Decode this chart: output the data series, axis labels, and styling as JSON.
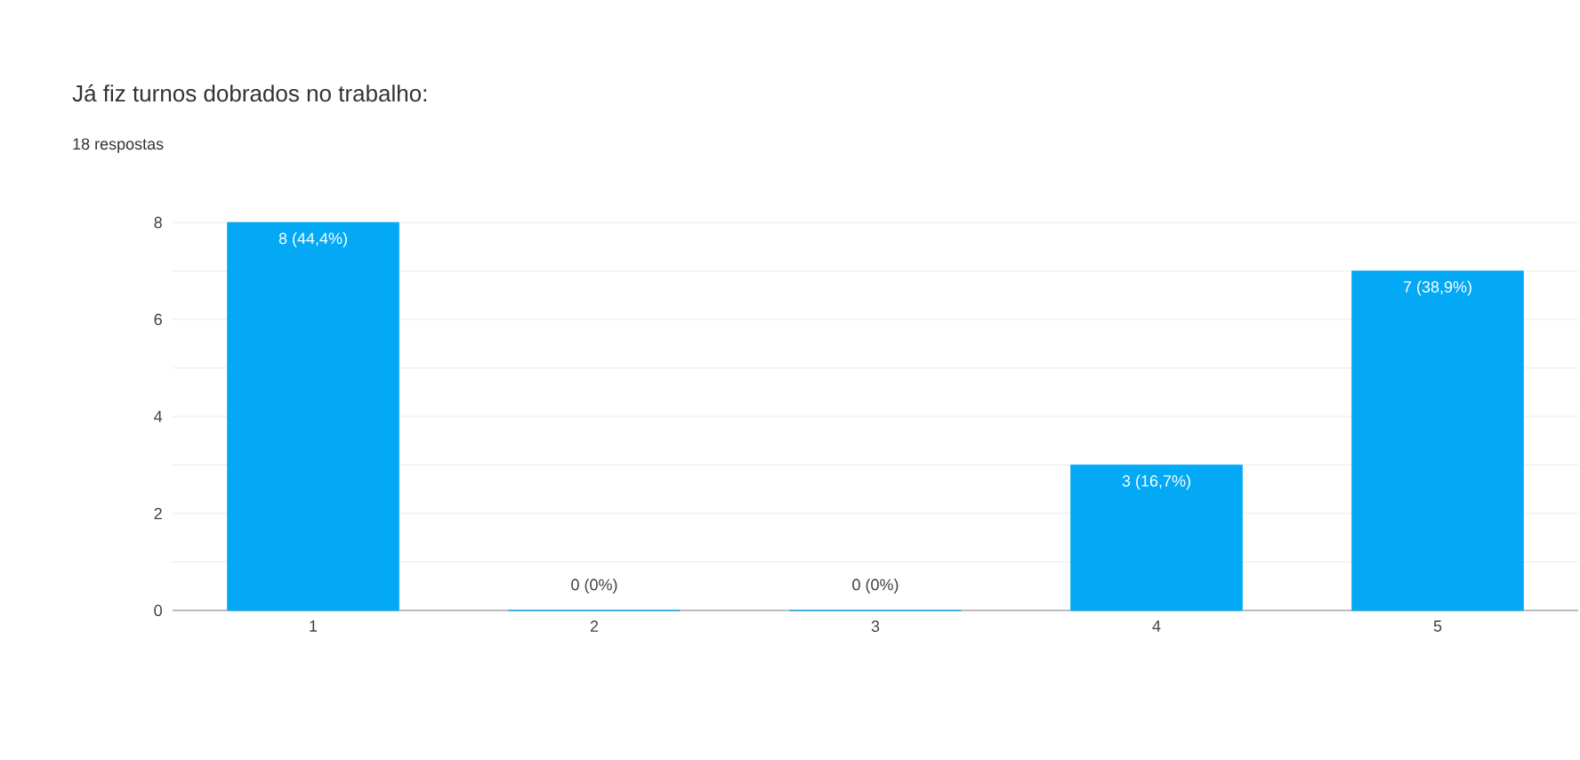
{
  "chart_data": {
    "type": "bar",
    "title": "Já fiz turnos dobrados no trabalho:",
    "subtitle": "18 respostas",
    "categories": [
      "1",
      "2",
      "3",
      "4",
      "5"
    ],
    "values": [
      8,
      0,
      0,
      3,
      7
    ],
    "value_labels": [
      "8 (44,4%)",
      "0 (0%)",
      "0 (0%)",
      "3 (16,7%)",
      "7 (38,9%)"
    ],
    "color": "#03a9f4",
    "ylim": [
      0,
      8
    ],
    "yticks": [
      0,
      {
        "value": 1,
        "label": null
      },
      2,
      {
        "value": 3,
        "label": null
      },
      4,
      {
        "value": 5,
        "label": null
      },
      6,
      {
        "value": 7,
        "label": null
      },
      8
    ],
    "grid": "y"
  }
}
